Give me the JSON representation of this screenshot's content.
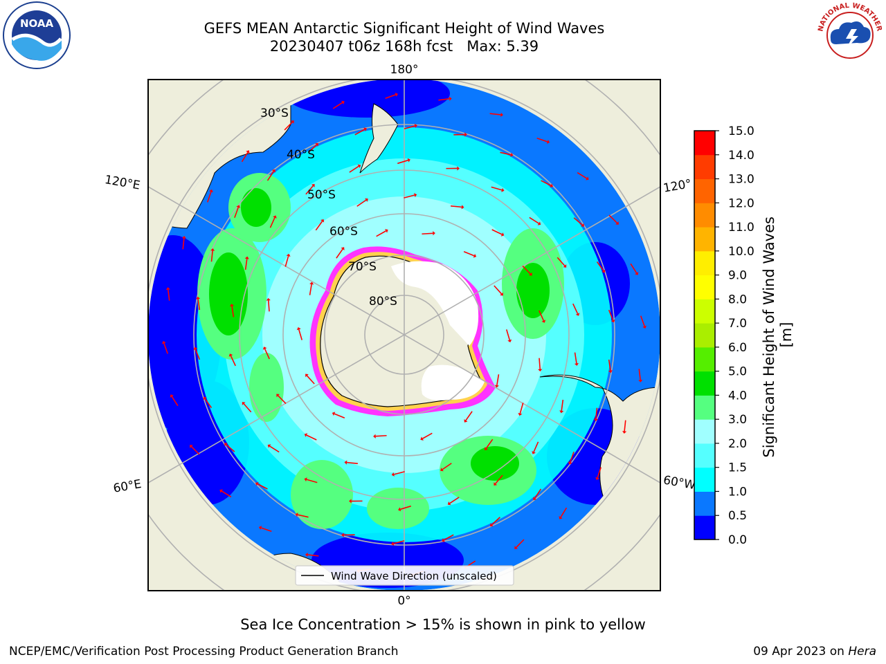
{
  "header": {
    "title_line1": "GEFS MEAN Antarctic Significant Height of Wind Waves",
    "title_line2": "20230407 t06z 168h fcst   Max: 5.39"
  },
  "logos": {
    "left": {
      "icon": "noaa-logo-icon",
      "text": "NOAA"
    },
    "right": {
      "icon": "nws-logo-icon",
      "text": "NATIONAL WEATHER SERVICE"
    }
  },
  "map": {
    "projection": "south-polar-stereographic",
    "longitude_labels": {
      "top": "180°",
      "bottom": "0°",
      "upper_left": "120°E",
      "upper_right": "120°",
      "lower_left": "60°E",
      "lower_right": "60°W"
    },
    "latitude_labels": [
      "30°S",
      "40°S",
      "50°S",
      "60°S",
      "70°S",
      "80°S"
    ],
    "legend_label": "Wind Wave Direction (unscaled)",
    "arrow_color": "#ff0000",
    "land_color": "#eeeedc",
    "sea_ice_colors": [
      "#ff33ff",
      "#ffd24d"
    ]
  },
  "colorbar": {
    "label": "Significant Height of Wind Waves [m]",
    "tick_labels": [
      "0.0",
      "0.5",
      "1.0",
      "1.5",
      "2.0",
      "3.0",
      "4.0",
      "5.0",
      "6.0",
      "7.0",
      "8.0",
      "9.0",
      "10.0",
      "11.0",
      "12.0",
      "13.0",
      "14.0",
      "15.0"
    ],
    "colors": [
      "#0000ff",
      "#0a78ff",
      "#00ffff",
      "#55ffff",
      "#a0ffff",
      "#55ff80",
      "#00e000",
      "#55ee00",
      "#aaee00",
      "#ccff00",
      "#ffff00",
      "#ffee00",
      "#ffb400",
      "#ff8c00",
      "#ff6400",
      "#ff3c00",
      "#ff0000"
    ]
  },
  "footer": {
    "caption": "Sea Ice Concentration > 15% is shown in pink to yellow",
    "credit_left": "NCEP/EMC/Verification Post Processing Product Generation Branch",
    "credit_right_prefix": "09 Apr 2023 on ",
    "credit_right_host": "Hera"
  }
}
